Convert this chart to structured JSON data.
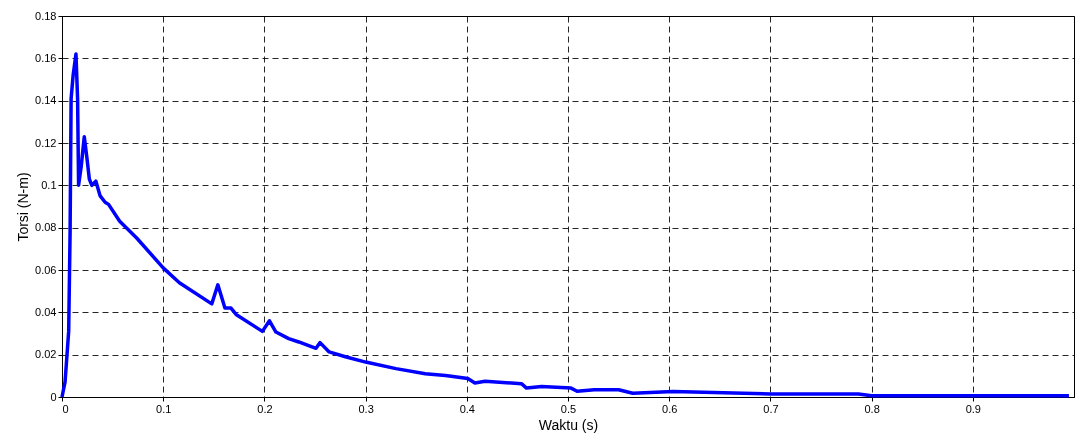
{
  "chart_data": {
    "type": "line",
    "xlabel": "Waktu (s)",
    "ylabel": "Torsi (N-m)",
    "xlim": [
      0,
      1
    ],
    "xticks": [
      0,
      0.1,
      0.2,
      0.3,
      0.4,
      0.5,
      0.6,
      0.7,
      0.8,
      0.9
    ],
    "ylim": [
      0,
      0.18
    ],
    "yticks": [
      0,
      0.02,
      0.04,
      0.06,
      0.08,
      0.1,
      0.12,
      0.14,
      0.16,
      0.18
    ],
    "grid": true,
    "marker": "none",
    "line_style": "solid",
    "series": [
      {
        "color": "#0000ff",
        "x": [
          0,
          0.003,
          0.0066,
          0.008,
          0.009,
          0.011,
          0.0138,
          0.0154,
          0.0164,
          0.019,
          0.022,
          0.0246,
          0.027,
          0.0295,
          0.0334,
          0.0377,
          0.0426,
          0.046,
          0.057,
          0.074,
          0.1,
          0.116,
          0.148,
          0.154,
          0.161,
          0.167,
          0.172,
          0.198,
          0.205,
          0.2114,
          0.224,
          0.234,
          0.251,
          0.255,
          0.264,
          0.28,
          0.3,
          0.33,
          0.359,
          0.379,
          0.401,
          0.408,
          0.418,
          0.454,
          0.459,
          0.474,
          0.503,
          0.509,
          0.526,
          0.55,
          0.564,
          0.604,
          0.7,
          0.787,
          0.8,
          0.995
        ],
        "values": [
          0,
          0.007,
          0.031,
          0.078,
          0.141,
          0.152,
          0.162,
          0.141,
          0.1,
          0.109,
          0.123,
          0.113,
          0.103,
          0.1,
          0.102,
          0.095,
          0.092,
          0.091,
          0.083,
          0.075,
          0.061,
          0.054,
          0.044,
          0.053,
          0.042,
          0.042,
          0.039,
          0.031,
          0.036,
          0.0307,
          0.0276,
          0.026,
          0.023,
          0.0257,
          0.0213,
          0.019,
          0.0165,
          0.0134,
          0.011,
          0.0102,
          0.0087,
          0.0066,
          0.0074,
          0.0063,
          0.0042,
          0.005,
          0.0042,
          0.0027,
          0.0034,
          0.0034,
          0.0018,
          0.0026,
          0.0014,
          0.0014,
          0.0006,
          0.0006
        ]
      }
    ]
  }
}
